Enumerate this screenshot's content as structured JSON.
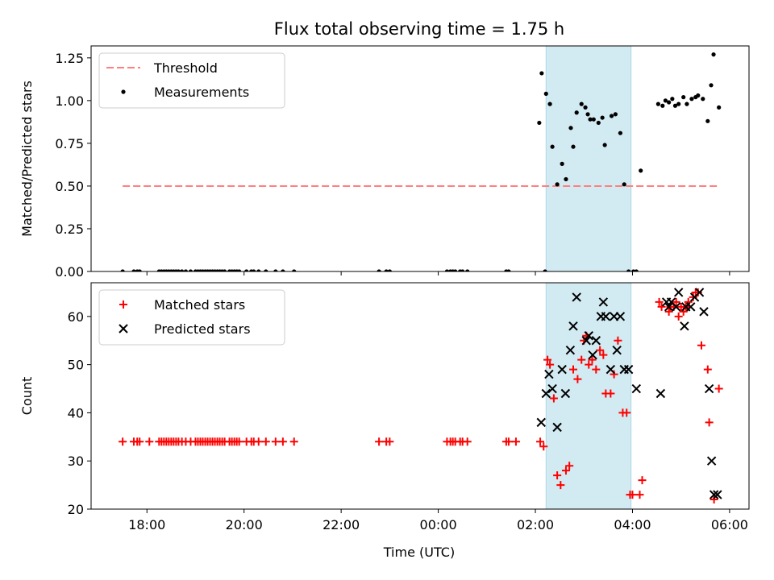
{
  "title": "Flux total observing time = 1.75 h",
  "xlabel": "Time (UTC)",
  "x_tick_labels": [
    "18:00",
    "20:00",
    "22:00",
    "00:00",
    "02:00",
    "04:00",
    "06:00"
  ],
  "chart_data": [
    {
      "type": "scatter",
      "ylabel": "Matched/Predicted stars",
      "ylim": [
        0,
        1.32
      ],
      "yticks": [
        0.0,
        0.25,
        0.5,
        0.75,
        1.0,
        1.25
      ],
      "ytick_labels": [
        "0.00",
        "0.25",
        "0.50",
        "0.75",
        "1.00",
        "1.25"
      ],
      "xlim_hours": [
        16.85,
        30.4
      ],
      "x_tick_hours": [
        18,
        20,
        22,
        24,
        26,
        28,
        30
      ],
      "shaded_span_hours": [
        26.22,
        27.97
      ],
      "shaded_color": "#add8e6",
      "legend_position": "upper-left",
      "threshold": {
        "name": "Threshold",
        "value": 0.5,
        "x_range_hours": [
          17.5,
          29.75
        ],
        "color": "#ff7f7f"
      },
      "measurements": {
        "name": "Measurements",
        "color": "#000000",
        "x_hours": [
          17.5,
          17.73,
          17.8,
          17.85,
          18.25,
          18.3,
          18.35,
          18.4,
          18.45,
          18.5,
          18.55,
          18.6,
          18.65,
          18.72,
          18.8,
          18.9,
          19.0,
          19.05,
          19.1,
          19.15,
          19.2,
          19.25,
          19.3,
          19.35,
          19.4,
          19.45,
          19.5,
          19.55,
          19.6,
          19.7,
          19.75,
          19.8,
          19.85,
          19.9,
          20.05,
          20.15,
          20.2,
          20.3,
          20.45,
          20.65,
          20.8,
          21.03,
          22.78,
          22.93,
          23.0,
          24.18,
          24.25,
          24.3,
          24.35,
          24.45,
          24.5,
          24.6,
          25.4,
          25.45,
          26.2,
          26.08,
          26.13,
          26.22,
          26.3,
          26.35,
          26.45,
          26.55,
          26.63,
          26.73,
          26.78,
          26.85,
          26.95,
          27.03,
          27.08,
          27.13,
          27.2,
          27.3,
          27.38,
          27.43,
          27.57,
          27.65,
          27.75,
          27.83,
          27.92,
          28.02,
          28.08,
          28.17,
          28.53,
          28.62,
          28.68,
          28.75,
          28.82,
          28.88,
          28.95,
          29.05,
          29.12,
          29.22,
          29.3,
          29.35,
          29.45,
          29.55,
          29.62,
          29.67,
          29.78
        ],
        "y": [
          0,
          0,
          0,
          0,
          0,
          0,
          0,
          0,
          0,
          0,
          0,
          0,
          0,
          0,
          0,
          0,
          0,
          0,
          0,
          0,
          0,
          0,
          0,
          0,
          0,
          0,
          0,
          0,
          0,
          0,
          0,
          0,
          0,
          0,
          0,
          0,
          0,
          0,
          0,
          0,
          0,
          0,
          0,
          0,
          0,
          0,
          0,
          0,
          0,
          0,
          0,
          0,
          0,
          0,
          0,
          0.87,
          1.16,
          1.04,
          0.98,
          0.73,
          0.51,
          0.63,
          0.54,
          0.84,
          0.73,
          0.93,
          0.98,
          0.96,
          0.92,
          0.89,
          0.89,
          0.87,
          0.9,
          0.74,
          0.91,
          0.92,
          0.81,
          0.51,
          0,
          0,
          0,
          0.59,
          0.98,
          0.97,
          1.0,
          0.99,
          1.01,
          0.97,
          0.98,
          1.02,
          0.98,
          1.01,
          1.02,
          1.03,
          1.01,
          0.88,
          1.09,
          1.27,
          0.96
        ]
      }
    },
    {
      "type": "scatter",
      "ylabel": "Count",
      "ylim": [
        20,
        67
      ],
      "yticks": [
        20,
        30,
        40,
        50,
        60
      ],
      "ytick_labels": [
        "20",
        "30",
        "40",
        "50",
        "60"
      ],
      "xlim_hours": [
        16.85,
        30.4
      ],
      "x_tick_hours": [
        18,
        20,
        22,
        24,
        26,
        28,
        30
      ],
      "shaded_span_hours": [
        26.22,
        27.97
      ],
      "shaded_color": "#add8e6",
      "legend_position": "upper-left",
      "series": [
        {
          "name": "Matched stars",
          "marker": "plus",
          "color": "#ff0000",
          "x_hours": [
            17.5,
            17.73,
            17.8,
            17.85,
            18.05,
            18.25,
            18.3,
            18.35,
            18.4,
            18.45,
            18.5,
            18.55,
            18.6,
            18.65,
            18.72,
            18.8,
            18.9,
            19.0,
            19.05,
            19.1,
            19.15,
            19.2,
            19.25,
            19.3,
            19.35,
            19.4,
            19.45,
            19.5,
            19.55,
            19.6,
            19.7,
            19.75,
            19.8,
            19.85,
            19.9,
            20.05,
            20.15,
            20.2,
            20.3,
            20.45,
            20.65,
            20.8,
            21.03,
            22.78,
            22.93,
            23.0,
            24.18,
            24.25,
            24.3,
            24.35,
            24.45,
            24.5,
            24.6,
            25.4,
            25.45,
            25.6,
            26.1,
            26.17,
            26.25,
            26.3,
            26.38,
            26.45,
            26.52,
            26.63,
            26.7,
            26.78,
            26.87,
            26.95,
            27.0,
            27.05,
            27.1,
            27.17,
            27.25,
            27.33,
            27.4,
            27.45,
            27.55,
            27.62,
            27.7,
            27.8,
            27.88,
            27.95,
            28.0,
            28.15,
            28.2,
            28.55,
            28.6,
            28.75,
            28.78,
            28.85,
            28.9,
            28.95,
            29.0,
            29.05,
            29.1,
            29.15,
            29.25,
            29.3,
            29.35,
            29.42,
            29.55,
            29.58,
            29.68,
            29.78
          ],
          "y": [
            34,
            34,
            34,
            34,
            34,
            34,
            34,
            34,
            34,
            34,
            34,
            34,
            34,
            34,
            34,
            34,
            34,
            34,
            34,
            34,
            34,
            34,
            34,
            34,
            34,
            34,
            34,
            34,
            34,
            34,
            34,
            34,
            34,
            34,
            34,
            34,
            34,
            34,
            34,
            34,
            34,
            34,
            34,
            34,
            34,
            34,
            34,
            34,
            34,
            34,
            34,
            34,
            34,
            34,
            34,
            34,
            34,
            33,
            51,
            50,
            43,
            27,
            25,
            28,
            29,
            49,
            47,
            51,
            55,
            56,
            50,
            51,
            49,
            53,
            52,
            44,
            44,
            48,
            55,
            40,
            40,
            23,
            23,
            23,
            26,
            63,
            62,
            61,
            62,
            62,
            63,
            60,
            62,
            61,
            62,
            63,
            64,
            65,
            65,
            54,
            49,
            38,
            22,
            45
          ]
        },
        {
          "name": "Predicted stars",
          "marker": "x",
          "color": "#000000",
          "x_hours": [
            26.12,
            26.22,
            26.28,
            26.35,
            26.45,
            26.55,
            26.62,
            26.72,
            26.78,
            26.85,
            27.05,
            27.1,
            27.18,
            27.25,
            27.35,
            27.4,
            27.45,
            27.55,
            27.62,
            27.68,
            27.75,
            27.83,
            27.92,
            28.08,
            28.58,
            28.7,
            28.75,
            28.8,
            28.9,
            28.95,
            29.07,
            29.1,
            29.2,
            29.28,
            29.38,
            29.47,
            29.58,
            29.63,
            29.68,
            29.75
          ],
          "y": [
            38,
            44,
            48,
            45,
            37,
            49,
            44,
            53,
            58,
            64,
            55,
            56,
            52,
            55,
            60,
            63,
            60,
            49,
            60,
            53,
            60,
            49,
            49,
            45,
            44,
            63,
            62,
            63,
            62,
            65,
            58,
            62,
            62,
            64,
            65,
            61,
            45,
            30,
            23,
            23
          ]
        }
      ]
    }
  ]
}
